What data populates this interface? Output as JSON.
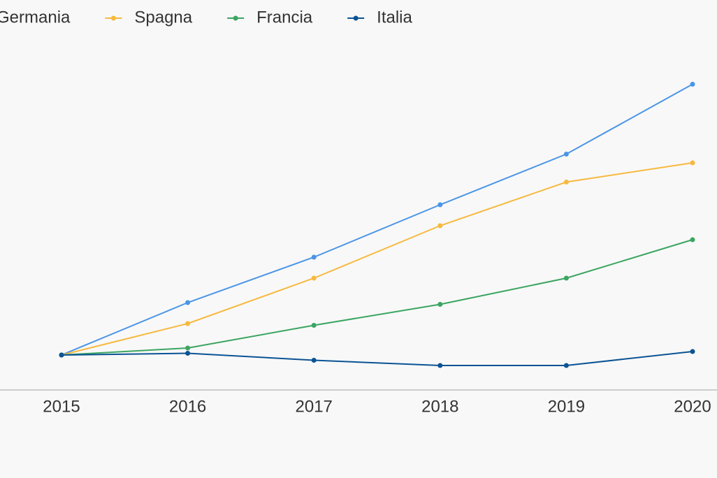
{
  "chart_data": {
    "type": "line",
    "categories": [
      "2015",
      "2016",
      "2017",
      "2018",
      "2019",
      "2020"
    ],
    "series": [
      {
        "name": "Germania",
        "color": "#4a95e6",
        "values": [
          100,
          130,
          156,
          186,
          215,
          255
        ]
      },
      {
        "name": "Spagna",
        "color": "#f7b93e",
        "values": [
          100,
          118,
          144,
          174,
          199,
          210
        ]
      },
      {
        "name": "Francia",
        "color": "#3ba561",
        "values": [
          100,
          104,
          117,
          129,
          144,
          166
        ]
      },
      {
        "name": "Italia",
        "color": "#0b5394",
        "values": [
          100,
          101,
          97,
          94,
          94,
          102
        ]
      }
    ],
    "ylim": [
      80,
      300
    ],
    "grid": false,
    "legend": "top"
  }
}
